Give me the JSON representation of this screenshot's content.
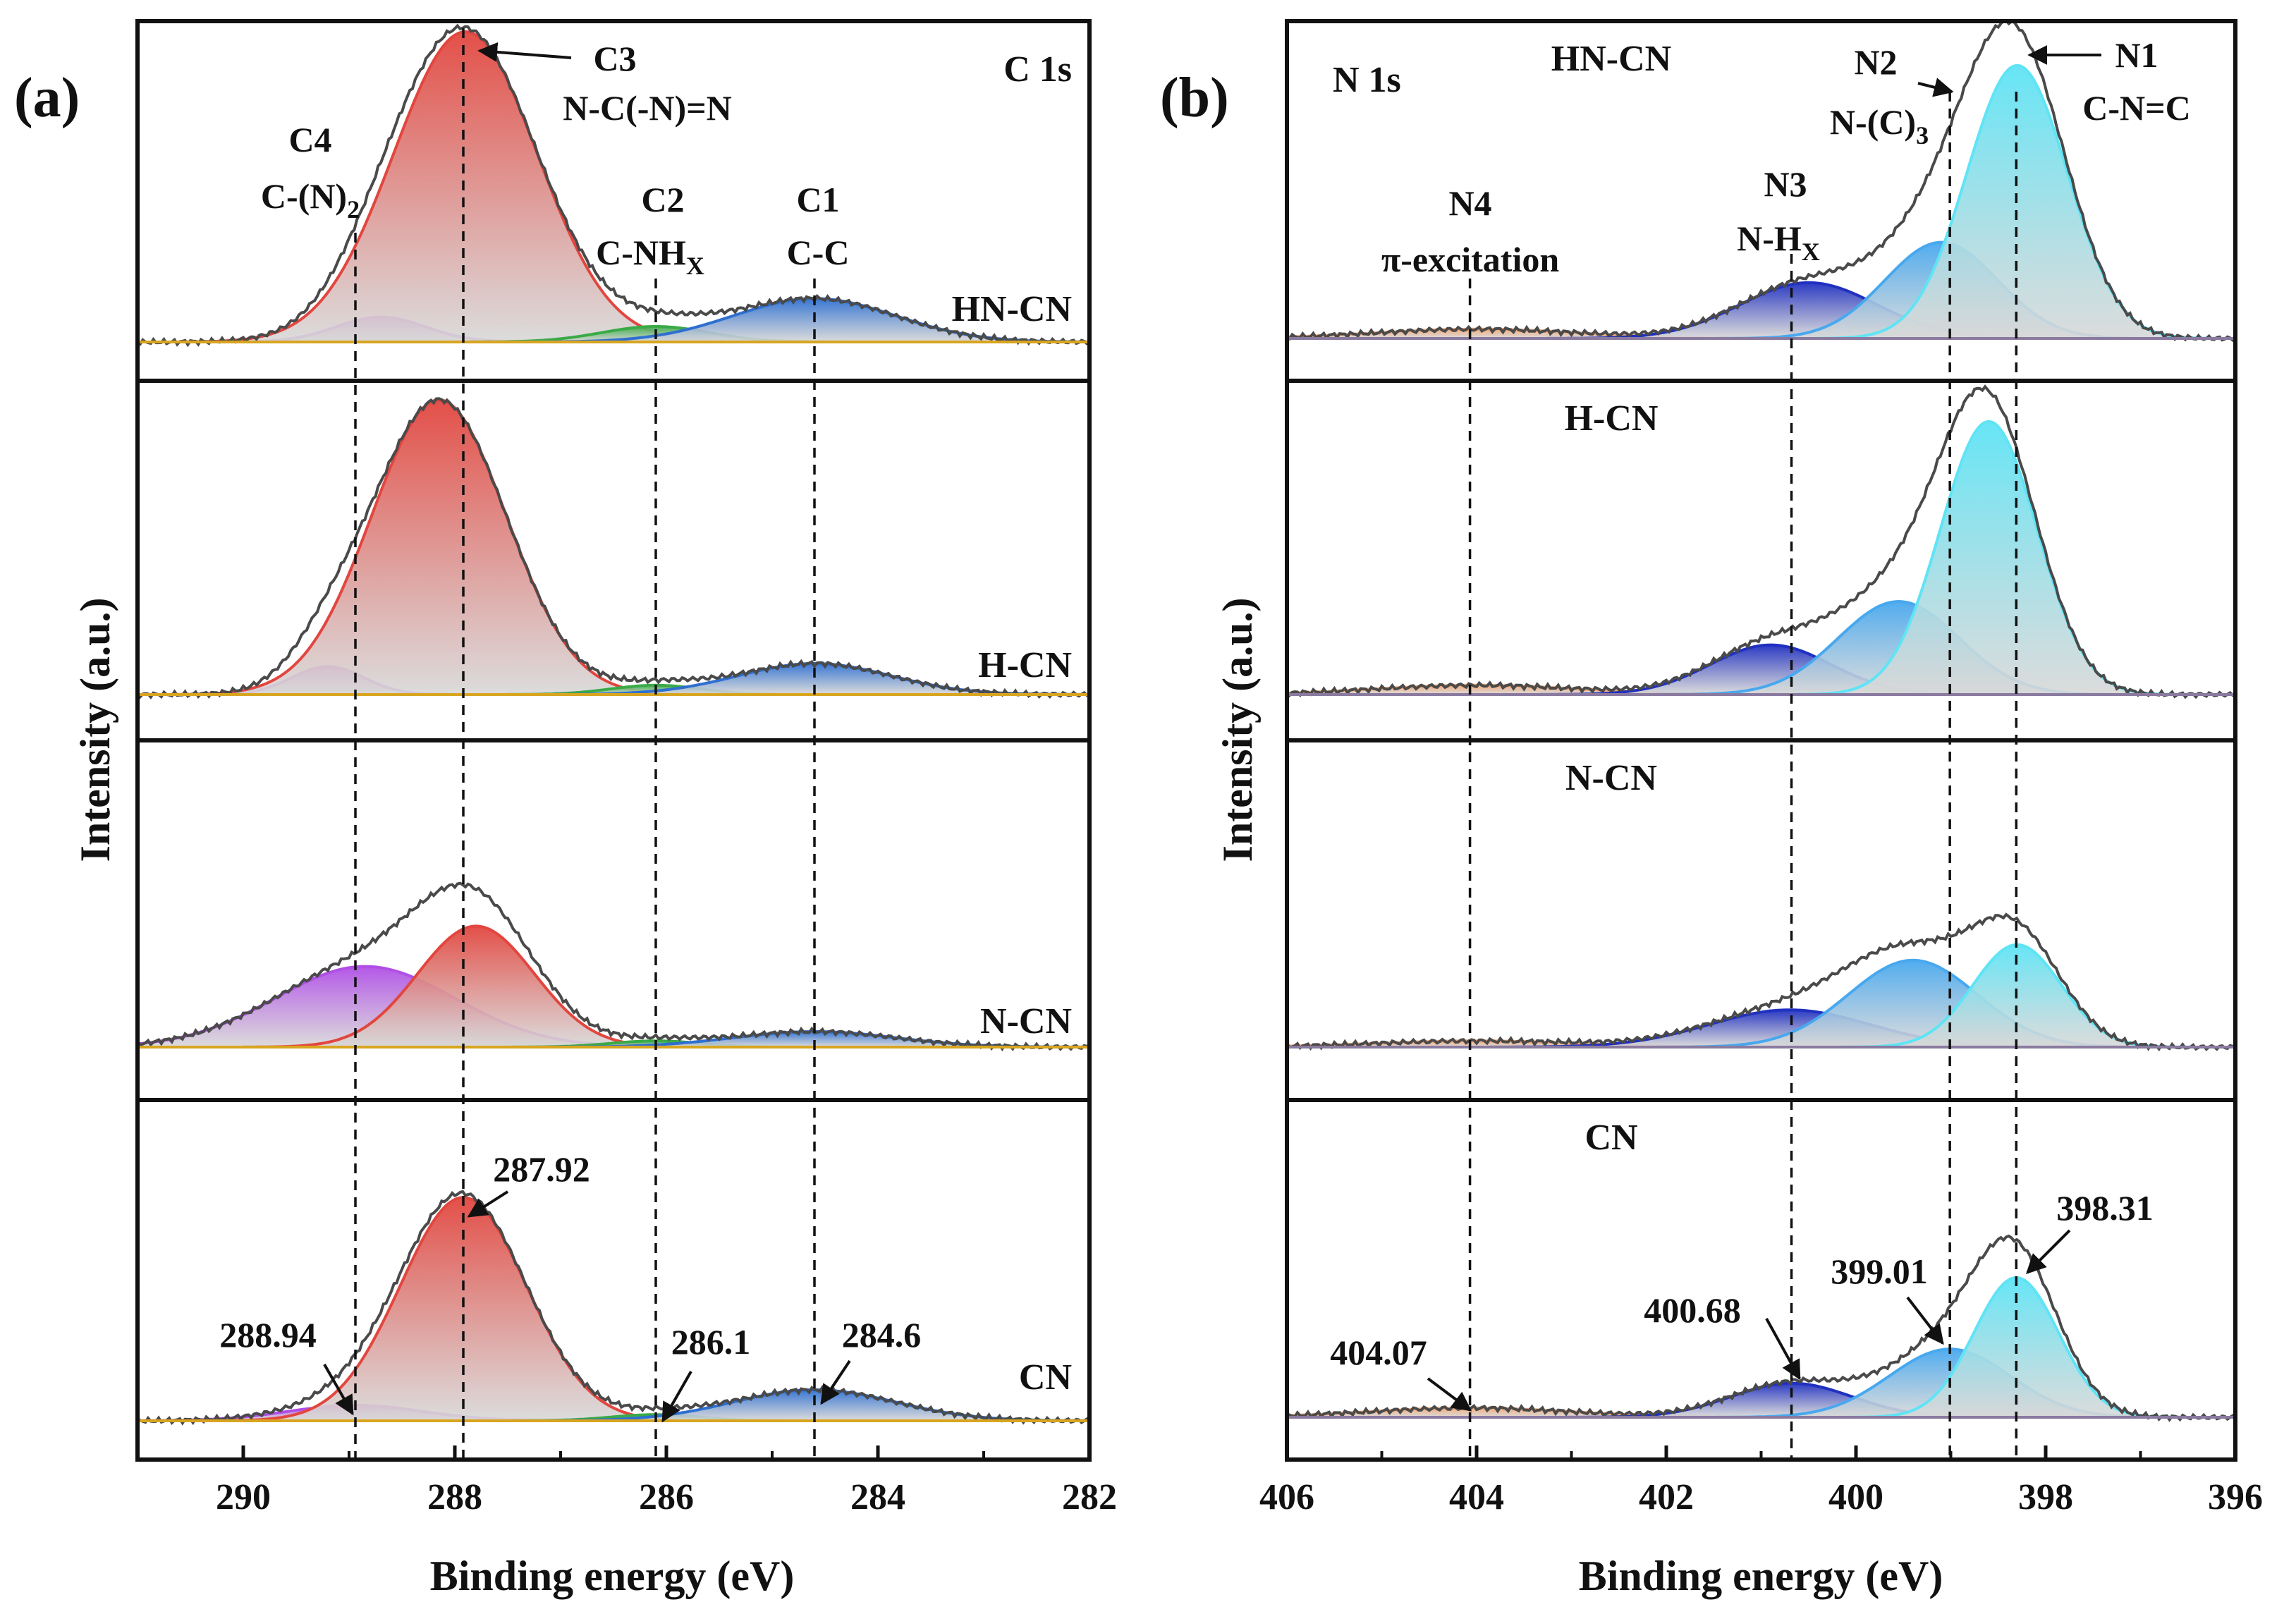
{
  "chart_data": [
    {
      "type": "line",
      "panel": "(a)",
      "element": "C 1s",
      "xlabel": "Binding energy (eV)",
      "ylabel": "Intensity (a.u.)",
      "xlim": [
        291,
        282
      ],
      "xticks": [
        "290",
        "288",
        "286",
        "284",
        "282"
      ],
      "reference_lines_eV": [
        288.94,
        287.92,
        286.1,
        284.6
      ],
      "peak_labels": [
        {
          "id": "C3",
          "name": "N-C(-N)=N",
          "name_pre": "N-C(-N)=N",
          "name_sub": "",
          "energy": 287.92
        },
        {
          "id": "C4",
          "name": "C-(N)2",
          "name_pre": "C-(N)",
          "name_sub": "2",
          "energy": 288.94
        },
        {
          "id": "C2",
          "name": "C-NHX",
          "name_pre": "C-NH",
          "name_sub": "X",
          "energy": 286.1
        },
        {
          "id": "C1",
          "name": "C-C",
          "name_pre": "C-C",
          "name_sub": "",
          "energy": 284.6
        }
      ],
      "value_labels": [
        "287.92",
        "288.94",
        "286.1",
        "284.6"
      ],
      "component_colors": {
        "C4": "#b04fe6",
        "C3": "#e2463f",
        "C2": "#3aaa47",
        "C1": "#2e6fd0",
        "envelope": "#4a4a4a",
        "baseline": "#d9a520"
      },
      "samples": [
        {
          "name": "HN-CN",
          "components": [
            {
              "id": "C4",
              "center": 288.7,
              "height": 0.08,
              "fwhm": 1.0
            },
            {
              "id": "C3",
              "center": 287.9,
              "height": 1.0,
              "fwhm": 1.6
            },
            {
              "id": "C2",
              "center": 286.1,
              "height": 0.05,
              "fwhm": 1.2
            },
            {
              "id": "C1",
              "center": 284.6,
              "height": 0.14,
              "fwhm": 1.8
            }
          ]
        },
        {
          "name": "H-CN",
          "components": [
            {
              "id": "C4",
              "center": 289.2,
              "height": 0.09,
              "fwhm": 0.8
            },
            {
              "id": "C3",
              "center": 288.15,
              "height": 0.95,
              "fwhm": 1.5
            },
            {
              "id": "C2",
              "center": 286.1,
              "height": 0.03,
              "fwhm": 1.0
            },
            {
              "id": "C1",
              "center": 284.6,
              "height": 0.1,
              "fwhm": 1.7
            }
          ]
        },
        {
          "name": "N-CN",
          "components": [
            {
              "id": "C4",
              "center": 288.85,
              "height": 0.26,
              "fwhm": 2.0
            },
            {
              "id": "C3",
              "center": 287.8,
              "height": 0.39,
              "fwhm": 1.3
            },
            {
              "id": "C2",
              "center": 286.1,
              "height": 0.02,
              "fwhm": 1.0
            },
            {
              "id": "C1",
              "center": 284.6,
              "height": 0.05,
              "fwhm": 1.8
            }
          ]
        },
        {
          "name": "CN",
          "components": [
            {
              "id": "C4",
              "center": 288.94,
              "height": 0.05,
              "fwhm": 1.5
            },
            {
              "id": "C3",
              "center": 287.92,
              "height": 0.72,
              "fwhm": 1.4
            },
            {
              "id": "C2",
              "center": 286.1,
              "height": 0.02,
              "fwhm": 1.0
            },
            {
              "id": "C1",
              "center": 284.6,
              "height": 0.1,
              "fwhm": 1.8
            }
          ]
        }
      ]
    },
    {
      "type": "line",
      "panel": "(b)",
      "element": "N 1s",
      "xlabel": "Binding energy (eV)",
      "ylabel": "Intensity (a.u.)",
      "xlim": [
        406,
        396
      ],
      "xticks": [
        "406",
        "404",
        "402",
        "400",
        "398",
        "396"
      ],
      "reference_lines_eV": [
        404.07,
        400.68,
        399.01,
        398.31
      ],
      "peak_labels": [
        {
          "id": "N1",
          "name": "C-N=C",
          "name_pre": "C-N=C",
          "name_sub": "",
          "energy": 398.31
        },
        {
          "id": "N2",
          "name": "N-(C)3",
          "name_pre": "N-(C)",
          "name_sub": "3",
          "energy": 399.01
        },
        {
          "id": "N3",
          "name": "N-HX",
          "name_pre": "N-H",
          "name_sub": "X",
          "energy": 400.68
        },
        {
          "id": "N4",
          "name": "π-excitation",
          "name_pre": "π-excitation",
          "name_sub": "",
          "energy": 404.07
        }
      ],
      "value_labels": [
        "404.07",
        "400.68",
        "399.01",
        "398.31"
      ],
      "component_colors": {
        "N4": "#f0a878",
        "N3": "#2030c0",
        "N2": "#48a8ee",
        "N1": "#5fe4f5",
        "envelope": "#4a4a4a",
        "baseline": "#8a7aa0"
      },
      "samples": [
        {
          "name": "HN-CN",
          "components": [
            {
              "id": "N4",
              "center": 404.0,
              "height": 0.03,
              "fwhm": 2.5
            },
            {
              "id": "N3",
              "center": 400.5,
              "height": 0.18,
              "fwhm": 1.7
            },
            {
              "id": "N2",
              "center": 399.1,
              "height": 0.31,
              "fwhm": 1.4
            },
            {
              "id": "N1",
              "center": 398.3,
              "height": 0.88,
              "fwhm": 1.25
            }
          ]
        },
        {
          "name": "H-CN",
          "components": [
            {
              "id": "N4",
              "center": 404.0,
              "height": 0.03,
              "fwhm": 2.5
            },
            {
              "id": "N3",
              "center": 400.9,
              "height": 0.16,
              "fwhm": 1.5
            },
            {
              "id": "N2",
              "center": 399.55,
              "height": 0.3,
              "fwhm": 1.5
            },
            {
              "id": "N1",
              "center": 398.6,
              "height": 0.88,
              "fwhm": 1.2
            }
          ]
        },
        {
          "name": "N-CN",
          "components": [
            {
              "id": "N4",
              "center": 404.0,
              "height": 0.02,
              "fwhm": 2.5
            },
            {
              "id": "N3",
              "center": 400.7,
              "height": 0.12,
              "fwhm": 2.0
            },
            {
              "id": "N2",
              "center": 399.4,
              "height": 0.28,
              "fwhm": 1.6
            },
            {
              "id": "N1",
              "center": 398.3,
              "height": 0.33,
              "fwhm": 1.1
            }
          ]
        },
        {
          "name": "CN",
          "components": [
            {
              "id": "N4",
              "center": 404.07,
              "height": 0.03,
              "fwhm": 2.5
            },
            {
              "id": "N3",
              "center": 400.68,
              "height": 0.11,
              "fwhm": 1.5
            },
            {
              "id": "N2",
              "center": 399.01,
              "height": 0.22,
              "fwhm": 1.5
            },
            {
              "id": "N1",
              "center": 398.31,
              "height": 0.45,
              "fwhm": 1.05
            }
          ]
        }
      ]
    }
  ]
}
